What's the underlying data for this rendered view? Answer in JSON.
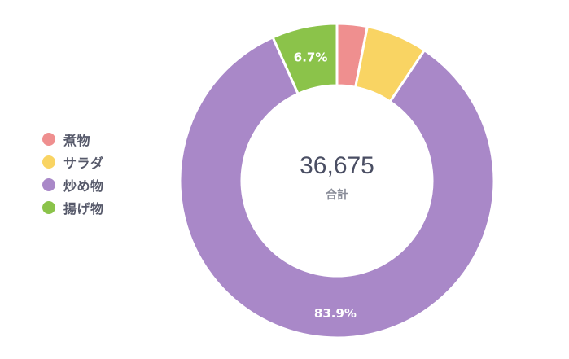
{
  "chart_data": {
    "type": "pie",
    "style": "donut",
    "categories": [
      "煮物",
      "サラダ",
      "炒め物",
      "揚げ物"
    ],
    "values": [
      3.1,
      6.3,
      83.9,
      6.7
    ],
    "colors": [
      "#ef8f8f",
      "#f9d463",
      "#a988c8",
      "#8bc34a"
    ],
    "value_labels": [
      "",
      "",
      "83.9%",
      "6.7%"
    ],
    "legend_position": "left",
    "center_total": "36,675",
    "center_caption": "合計"
  }
}
